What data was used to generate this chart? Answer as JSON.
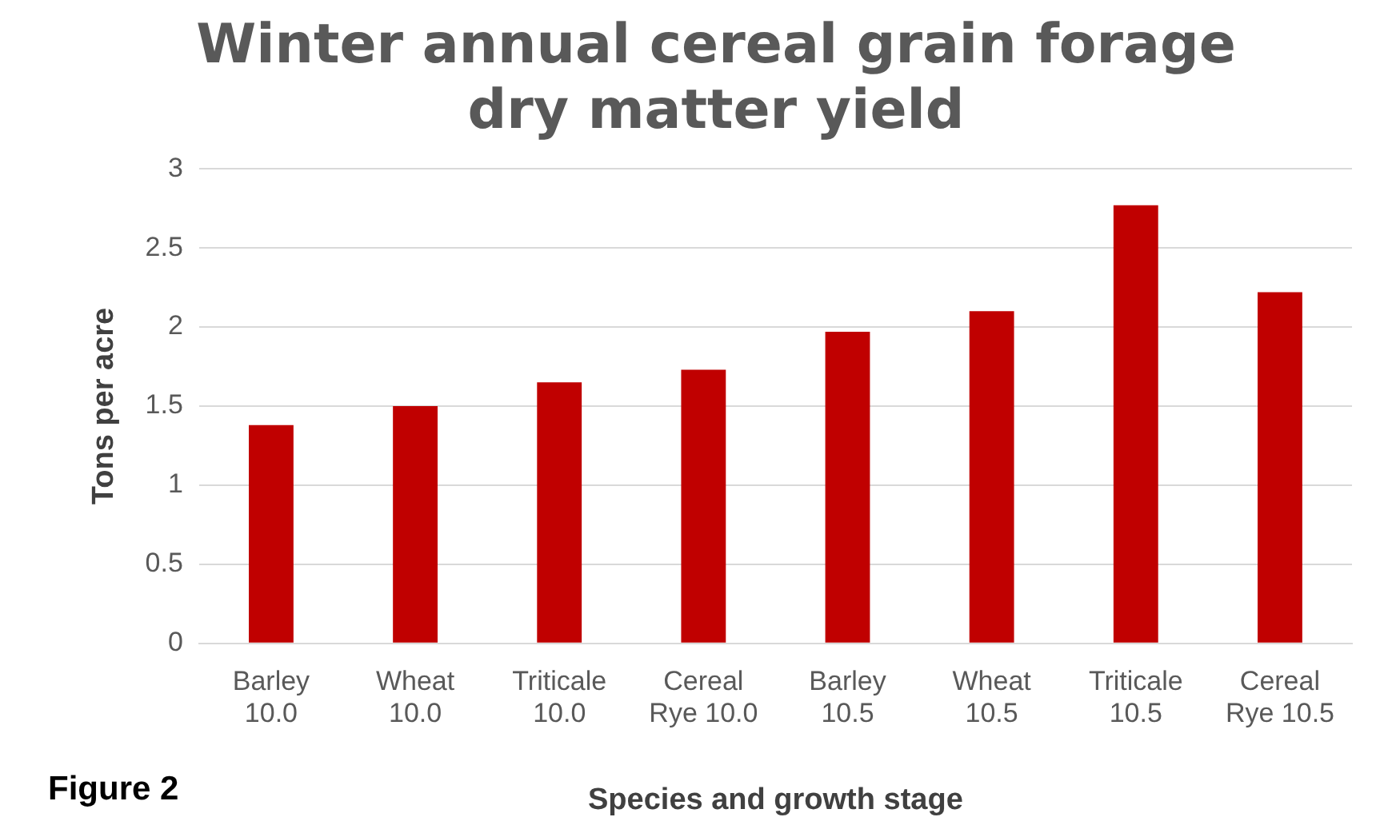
{
  "chart_data": {
    "type": "bar",
    "title": "Winter annual cereal grain forage dry matter yield",
    "xlabel": "Species and growth stage",
    "ylabel": "Tons per acre",
    "categories": [
      "Barley 10.0",
      "Wheat 10.0",
      "Triticale 10.0",
      "Cereal Rye 10.0",
      "Barley 10.5",
      "Wheat 10.5",
      "Triticale 10.5",
      "Cereal Rye 10.5"
    ],
    "values": [
      1.38,
      1.5,
      1.65,
      1.73,
      1.97,
      2.1,
      2.77,
      2.22
    ],
    "color": "#c00000",
    "ylim": [
      0,
      3
    ],
    "yticks": [
      0,
      0.5,
      1,
      1.5,
      2,
      2.5,
      3
    ],
    "grid": "y",
    "annotations": [
      "Figure 2"
    ]
  }
}
